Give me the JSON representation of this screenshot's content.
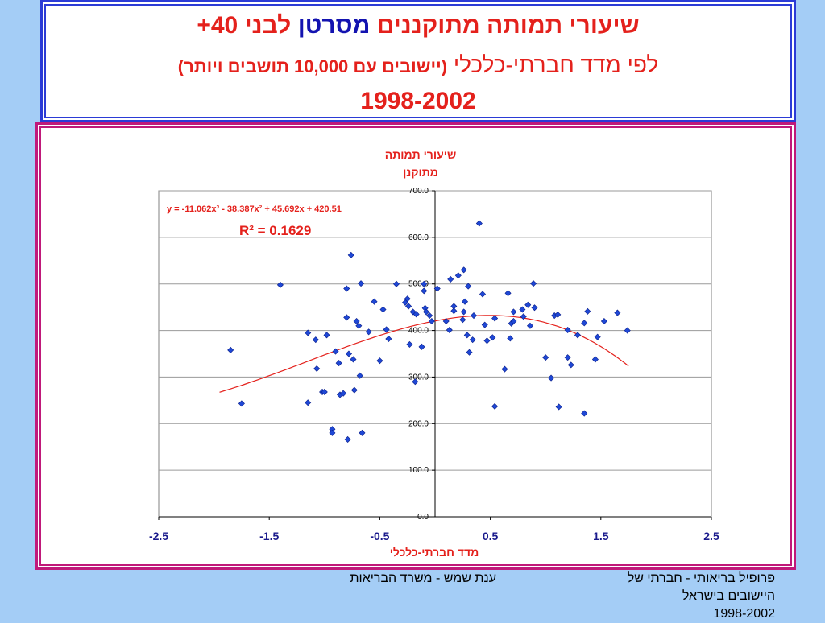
{
  "header": {
    "title_part1": "שיעורי תמותה מתוקננים",
    "title_part2": "מסרטן",
    "title_part3": "לבני 40+",
    "subtitle_main": "לפי מדד חברתי-כלכלי",
    "subtitle_paren": "(יישובים עם 10,000 תושבים ויותר)",
    "years": "1998-2002"
  },
  "chart_data": {
    "type": "scatter",
    "title_line1": "שיעורי תמותה",
    "title_line2": "מתוקנן",
    "xlabel": "מדד חברתי-כלכלי",
    "ylabel": "",
    "xlim": [
      -2.5,
      2.5
    ],
    "ylim": [
      0,
      700
    ],
    "xticks": [
      "-2.5",
      "-1.5",
      "-0.5",
      "0.5",
      "1.5",
      "2.5"
    ],
    "yticks": [
      "0.0",
      "100.0",
      "200.0",
      "300.0",
      "400.0",
      "500.0",
      "600.0",
      "700.0"
    ],
    "grid": "horizontal",
    "marker_color": "#1f48d6",
    "trend_color": "#e4211c",
    "equation": "y = -11.062x³ - 38.387x² + 45.692x + 420.51",
    "r2_text": "R² = 0.1629",
    "trendline": {
      "a3": -11.062,
      "a2": -38.387,
      "a1": 45.692,
      "a0": 420.51,
      "x_range": [
        -1.95,
        1.75
      ]
    },
    "points": [
      [
        -1.85,
        358
      ],
      [
        -1.75,
        243
      ],
      [
        -1.4,
        498
      ],
      [
        -1.15,
        395
      ],
      [
        -1.15,
        245
      ],
      [
        -1.08,
        380
      ],
      [
        -1.07,
        318
      ],
      [
        -1.02,
        268
      ],
      [
        -1.0,
        268
      ],
      [
        -0.98,
        390
      ],
      [
        -0.93,
        188
      ],
      [
        -0.93,
        180
      ],
      [
        -0.9,
        355
      ],
      [
        -0.87,
        330
      ],
      [
        -0.86,
        262
      ],
      [
        -0.83,
        265
      ],
      [
        -0.8,
        428
      ],
      [
        -0.8,
        490
      ],
      [
        -0.79,
        166
      ],
      [
        -0.78,
        350
      ],
      [
        -0.76,
        562
      ],
      [
        -0.74,
        338
      ],
      [
        -0.73,
        272
      ],
      [
        -0.71,
        420
      ],
      [
        -0.69,
        410
      ],
      [
        -0.68,
        303
      ],
      [
        -0.67,
        501
      ],
      [
        -0.66,
        180
      ],
      [
        -0.6,
        397
      ],
      [
        -0.55,
        462
      ],
      [
        -0.5,
        335
      ],
      [
        -0.47,
        445
      ],
      [
        -0.44,
        402
      ],
      [
        -0.42,
        382
      ],
      [
        -0.35,
        500
      ],
      [
        -0.27,
        460
      ],
      [
        -0.25,
        468
      ],
      [
        -0.24,
        452
      ],
      [
        -0.23,
        370
      ],
      [
        -0.2,
        440
      ],
      [
        -0.18,
        290
      ],
      [
        -0.17,
        435
      ],
      [
        -0.12,
        365
      ],
      [
        -0.1,
        500
      ],
      [
        -0.1,
        485
      ],
      [
        -0.09,
        448
      ],
      [
        -0.08,
        440
      ],
      [
        -0.05,
        432
      ],
      [
        -0.03,
        420
      ],
      [
        0.02,
        490
      ],
      [
        0.1,
        420
      ],
      [
        0.13,
        401
      ],
      [
        0.14,
        510
      ],
      [
        0.17,
        442
      ],
      [
        0.17,
        452
      ],
      [
        0.21,
        518
      ],
      [
        0.25,
        423
      ],
      [
        0.26,
        530
      ],
      [
        0.26,
        440
      ],
      [
        0.27,
        462
      ],
      [
        0.29,
        390
      ],
      [
        0.3,
        495
      ],
      [
        0.31,
        353
      ],
      [
        0.34,
        380
      ],
      [
        0.35,
        432
      ],
      [
        0.4,
        630
      ],
      [
        0.43,
        478
      ],
      [
        0.45,
        412
      ],
      [
        0.47,
        378
      ],
      [
        0.52,
        385
      ],
      [
        0.54,
        426
      ],
      [
        0.54,
        237
      ],
      [
        0.63,
        317
      ],
      [
        0.66,
        480
      ],
      [
        0.68,
        383
      ],
      [
        0.69,
        415
      ],
      [
        0.71,
        420
      ],
      [
        0.71,
        440
      ],
      [
        0.79,
        445
      ],
      [
        0.8,
        430
      ],
      [
        0.84,
        455
      ],
      [
        0.86,
        410
      ],
      [
        0.89,
        501
      ],
      [
        0.9,
        449
      ],
      [
        1.0,
        342
      ],
      [
        1.05,
        298
      ],
      [
        1.08,
        432
      ],
      [
        1.11,
        434
      ],
      [
        1.12,
        236
      ],
      [
        1.2,
        401
      ],
      [
        1.2,
        342
      ],
      [
        1.23,
        326
      ],
      [
        1.29,
        390
      ],
      [
        1.35,
        222
      ],
      [
        1.35,
        416
      ],
      [
        1.38,
        441
      ],
      [
        1.45,
        338
      ],
      [
        1.47,
        386
      ],
      [
        1.53,
        420
      ],
      [
        1.65,
        438
      ],
      [
        1.74,
        400
      ]
    ]
  },
  "footer": {
    "right_line1": "פרופיל בריאותי - חברתי של",
    "right_line2": "היישובים בישראל",
    "right_line3": "1998-2002",
    "middle": "ענת שמש - משרד הבריאות"
  }
}
